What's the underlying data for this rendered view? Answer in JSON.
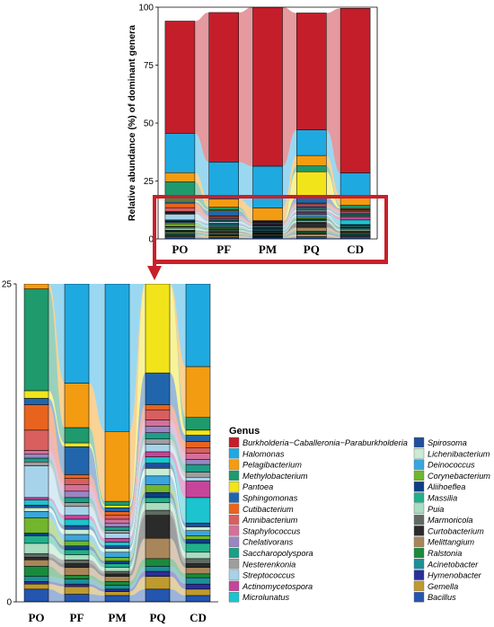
{
  "chart_data": [
    {
      "type": "stacked-bar",
      "panel": "top",
      "ylabel": "Relative abundance (%) of dominant genera",
      "ylim": [
        0,
        100
      ],
      "yticks": [
        0,
        25,
        50,
        75,
        100
      ],
      "categories": [
        "PO",
        "PF",
        "PM",
        "PQ",
        "CD"
      ],
      "series": [
        {
          "name": "Bacillus",
          "values": [
            1.0,
            0.6,
            0.5,
            1.0,
            0.5
          ]
        },
        {
          "name": "Gemella",
          "values": [
            0.4,
            0.6,
            0.3,
            1.0,
            0.5
          ]
        },
        {
          "name": "Hymenobacter",
          "values": [
            0.2,
            0.2,
            0.2,
            0.4,
            0.4
          ]
        },
        {
          "name": "Acinetobacter",
          "values": [
            0.4,
            0.4,
            0.3,
            0.4,
            0.5
          ]
        },
        {
          "name": "Ralstonia",
          "values": [
            0.8,
            0.3,
            0.3,
            0.6,
            0.3
          ]
        },
        {
          "name": "Melittangium",
          "values": [
            0.5,
            0.6,
            0.4,
            1.6,
            0.5
          ]
        },
        {
          "name": "Curtobacterium",
          "values": [
            0.2,
            0.3,
            0.2,
            1.8,
            0.3
          ]
        },
        {
          "name": "Marmoricola",
          "values": [
            0.3,
            0.3,
            0.2,
            0.4,
            0.4
          ]
        },
        {
          "name": "Puia",
          "values": [
            0.8,
            0.4,
            0.3,
            0.6,
            0.5
          ]
        },
        {
          "name": "Massilia",
          "values": [
            0.6,
            0.4,
            0.3,
            0.4,
            0.7
          ]
        },
        {
          "name": "Aliihoeflea",
          "values": [
            0.2,
            0.3,
            0.2,
            0.4,
            0.3
          ]
        },
        {
          "name": "Corynebacterium",
          "values": [
            1.2,
            0.4,
            0.3,
            0.6,
            0.3
          ]
        },
        {
          "name": "Deinococcus",
          "values": [
            0.5,
            0.5,
            0.4,
            0.7,
            0.4
          ]
        },
        {
          "name": "Lichenibacterium",
          "values": [
            0.3,
            0.4,
            0.3,
            0.6,
            0.3
          ]
        },
        {
          "name": "Spirosoma",
          "values": [
            0.2,
            0.3,
            0.2,
            0.4,
            0.3
          ]
        },
        {
          "name": "Microlunatus",
          "values": [
            0.4,
            0.5,
            0.3,
            0.5,
            2.0
          ]
        },
        {
          "name": "Actinomycetospora",
          "values": [
            0.2,
            0.3,
            0.3,
            0.4,
            1.3
          ]
        },
        {
          "name": "Streptococcus",
          "values": [
            2.5,
            0.7,
            0.4,
            0.6,
            0.3
          ]
        },
        {
          "name": "Nesterenkonia",
          "values": [
            0.3,
            0.3,
            0.2,
            0.4,
            0.4
          ]
        },
        {
          "name": "Saccharopolyspora",
          "values": [
            0.3,
            0.4,
            0.3,
            0.5,
            0.6
          ]
        },
        {
          "name": "Chelativorans",
          "values": [
            0.3,
            0.5,
            0.3,
            0.5,
            0.4
          ]
        },
        {
          "name": "Staphylococcus",
          "values": [
            0.3,
            0.5,
            0.3,
            0.5,
            0.5
          ]
        },
        {
          "name": "Amnibacterium",
          "values": [
            1.6,
            0.5,
            0.3,
            0.8,
            0.4
          ]
        },
        {
          "name": "Cutibacterium",
          "values": [
            2.0,
            0.3,
            0.3,
            0.4,
            0.5
          ]
        },
        {
          "name": "Sphingomonas",
          "values": [
            0.5,
            2.2,
            0.3,
            2.5,
            0.5
          ]
        },
        {
          "name": "Pantoea",
          "values": [
            0.6,
            0.3,
            0.2,
            11.0,
            0.4
          ]
        },
        {
          "name": "Methylobacterium",
          "values": [
            8.0,
            1.2,
            0.3,
            2.5,
            1.0
          ]
        },
        {
          "name": "Pelagibacterium",
          "values": [
            4.0,
            3.5,
            5.5,
            4.5,
            4.0
          ]
        },
        {
          "name": "Halomonas",
          "values": [
            17.0,
            16.0,
            18.0,
            11.0,
            10.0
          ]
        },
        {
          "name": "Burkholderia-Caballeronia-Paraburkholderia",
          "values": [
            48.4,
            64.5,
            69.6,
            50.5,
            71.0
          ]
        }
      ]
    },
    {
      "type": "stacked-bar",
      "panel": "bottom (zoom of 0–25% range)",
      "ylim": [
        0,
        25
      ],
      "yticks": [
        0,
        25
      ],
      "categories": [
        "PO",
        "PF",
        "PM",
        "PQ",
        "CD"
      ],
      "series_ref": "same series as top panel"
    }
  ],
  "legend": {
    "title": "Genus",
    "items": [
      {
        "name": "Burkholderia−Caballeronia−Paraburkholderia",
        "color": "#c41e2a"
      },
      {
        "name": "Halomonas",
        "color": "#1fa9e1"
      },
      {
        "name": "Pelagibacterium",
        "color": "#f39c12"
      },
      {
        "name": "Methylobacterium",
        "color": "#1e9a6c"
      },
      {
        "name": "Pantoea",
        "color": "#f2e41b"
      },
      {
        "name": "Sphingomonas",
        "color": "#2166ac"
      },
      {
        "name": "Cutibacterium",
        "color": "#e8641e"
      },
      {
        "name": "Amnibacterium",
        "color": "#d95f5f"
      },
      {
        "name": "Staphylococcus",
        "color": "#d4709b"
      },
      {
        "name": "Chelativorans",
        "color": "#9a86c4"
      },
      {
        "name": "Saccharopolyspora",
        "color": "#1d9e87"
      },
      {
        "name": "Nesterenkonia",
        "color": "#9e9e9e"
      },
      {
        "name": "Streptococcus",
        "color": "#a6d3ea"
      },
      {
        "name": "Actinomycetospora",
        "color": "#c6449a"
      },
      {
        "name": "Microlunatus",
        "color": "#1bc4cf"
      },
      {
        "name": "Spirosoma",
        "color": "#1f4f9a"
      },
      {
        "name": "Lichenibacterium",
        "color": "#c9ecd5"
      },
      {
        "name": "Deinococcus",
        "color": "#3aa6dd"
      },
      {
        "name": "Corynebacterium",
        "color": "#71b62c"
      },
      {
        "name": "Aliihoeflea",
        "color": "#0d3f86"
      },
      {
        "name": "Massilia",
        "color": "#21b08c"
      },
      {
        "name": "Puia",
        "color": "#a9dcc0"
      },
      {
        "name": "Marmoricola",
        "color": "#5f6b62"
      },
      {
        "name": "Curtobacterium",
        "color": "#2b2b2b"
      },
      {
        "name": "Melittangium",
        "color": "#a9865a"
      },
      {
        "name": "Ralstonia",
        "color": "#1b8a3c"
      },
      {
        "name": "Acinetobacter",
        "color": "#1d8f98"
      },
      {
        "name": "Hymenobacter",
        "color": "#2a2f9a"
      },
      {
        "name": "Gemella",
        "color": "#bf9a2e"
      },
      {
        "name": "Bacillus",
        "color": "#2456b0"
      }
    ]
  },
  "accent_colors": {
    "highlight_box": "#c8202a"
  }
}
